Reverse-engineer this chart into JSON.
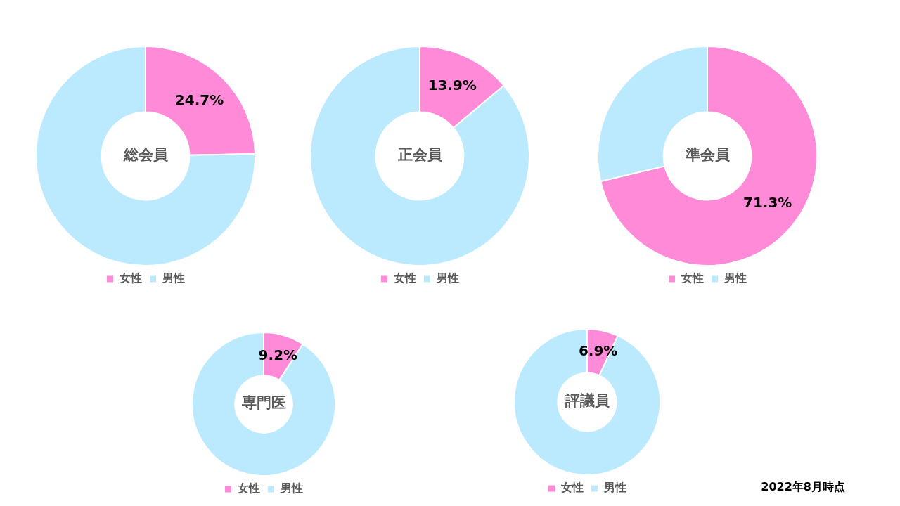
{
  "chart_data": [
    {
      "type": "donut",
      "title": "総会員",
      "categories": [
        "女性",
        "男性"
      ],
      "values": [
        24.7,
        75.3
      ],
      "colors": [
        "#ff8ad8",
        "#bbeafe"
      ],
      "value_labels": [
        "24.7%",
        null
      ],
      "legend": "bottom"
    },
    {
      "type": "donut",
      "title": "正会員",
      "categories": [
        "女性",
        "男性"
      ],
      "values": [
        13.9,
        86.1
      ],
      "colors": [
        "#ff8ad8",
        "#bbeafe"
      ],
      "value_labels": [
        "13.9%",
        null
      ],
      "legend": "bottom"
    },
    {
      "type": "donut",
      "title": "準会員",
      "categories": [
        "女性",
        "男性"
      ],
      "values": [
        71.3,
        28.7
      ],
      "colors": [
        "#ff8ad8",
        "#bbeafe"
      ],
      "value_labels": [
        "71.3%",
        null
      ],
      "legend": "bottom"
    },
    {
      "type": "donut",
      "title": "専門医",
      "categories": [
        "女性",
        "男性"
      ],
      "values": [
        9.2,
        90.8
      ],
      "colors": [
        "#ff8ad8",
        "#bbeafe"
      ],
      "value_labels": [
        "9.2%",
        null
      ],
      "legend": "bottom"
    },
    {
      "type": "donut",
      "title": "評議員",
      "categories": [
        "女性",
        "男性"
      ],
      "values": [
        6.9,
        93.1
      ],
      "colors": [
        "#ff8ad8",
        "#bbeafe"
      ],
      "value_labels": [
        "6.9%",
        null
      ],
      "legend": "bottom",
      "annotations": [
        "2022年8月時点"
      ]
    }
  ]
}
